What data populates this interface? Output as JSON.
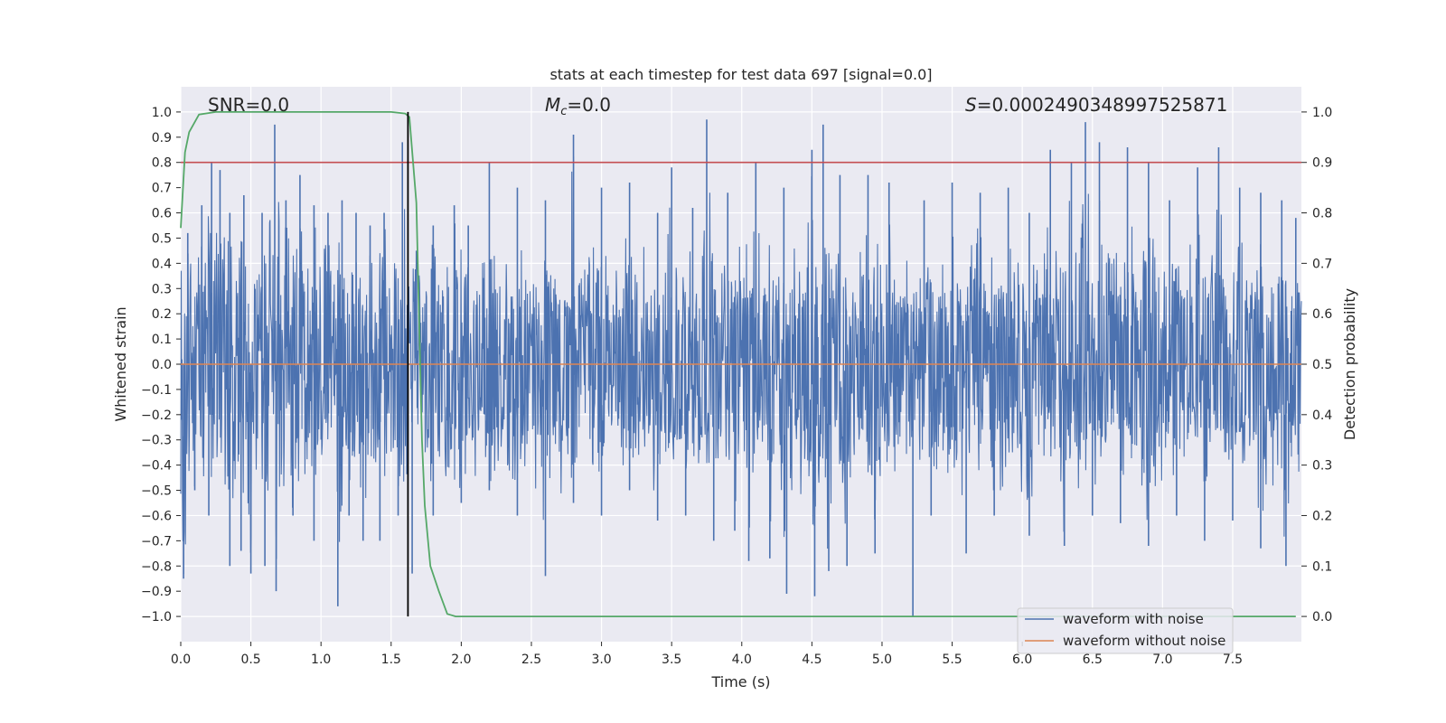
{
  "chart_data": {
    "type": "line",
    "title": "stats at each timestep for test data 697 [signal=0.0]",
    "xlabel": "Time (s)",
    "ylabel_left": "Whitened strain",
    "ylabel_right": "Detection probability",
    "xlim": [
      0.0,
      7.99
    ],
    "ylim_left": [
      -1.1,
      1.1
    ],
    "ylim_right": [
      -0.05,
      1.05
    ],
    "x_ticks": [
      "0.0",
      "0.5",
      "1.0",
      "1.5",
      "2.0",
      "2.5",
      "3.0",
      "3.5",
      "4.0",
      "4.5",
      "5.0",
      "5.5",
      "6.0",
      "6.5",
      "7.0",
      "7.5"
    ],
    "x_tick_values": [
      0.0,
      0.5,
      1.0,
      1.5,
      2.0,
      2.5,
      3.0,
      3.5,
      4.0,
      4.5,
      5.0,
      5.5,
      6.0,
      6.5,
      7.0,
      7.5
    ],
    "y_ticks_left": [
      "1.0",
      "0.9",
      "0.8",
      "0.7",
      "0.6",
      "0.5",
      "0.4",
      "0.3",
      "0.2",
      "0.1",
      "0.0",
      "−0.1",
      "−0.2",
      "−0.3",
      "−0.4",
      "−0.5",
      "−0.6",
      "−0.7",
      "−0.8",
      "−0.9",
      "−1.0"
    ],
    "y_tick_values_left": [
      1.0,
      0.9,
      0.8,
      0.7,
      0.6,
      0.5,
      0.4,
      0.3,
      0.2,
      0.1,
      0.0,
      -0.1,
      -0.2,
      -0.3,
      -0.4,
      -0.5,
      -0.6,
      -0.7,
      -0.8,
      -0.9,
      -1.0
    ],
    "y_ticks_right": [
      "1.0",
      "0.9",
      "0.8",
      "0.7",
      "0.6",
      "0.5",
      "0.4",
      "0.3",
      "0.2",
      "0.1",
      "0.0"
    ],
    "y_tick_values_right": [
      1.0,
      0.9,
      0.8,
      0.7,
      0.6,
      0.5,
      0.4,
      0.3,
      0.2,
      0.1,
      0.0
    ],
    "annotations": {
      "snr": "SNR=0.0",
      "mc_symbol": "M",
      "mc_sub": "c",
      "mc_value": "=0.0",
      "s_symbol": "S",
      "s_value": "=0.0002490348997525871"
    },
    "series": [
      {
        "name": "waveform with noise",
        "color": "#4c72b0",
        "note": "dense noise trace; envelope peaks (x, y) read from figure",
        "peaks_pos": [
          [
            0.05,
            0.52
          ],
          [
            0.15,
            0.63
          ],
          [
            0.22,
            0.8
          ],
          [
            0.28,
            0.77
          ],
          [
            0.35,
            0.6
          ],
          [
            0.45,
            0.67
          ],
          [
            0.58,
            0.6
          ],
          [
            0.67,
            0.95
          ],
          [
            0.75,
            0.65
          ],
          [
            0.85,
            0.75
          ],
          [
            0.95,
            0.63
          ],
          [
            1.05,
            0.6
          ],
          [
            1.15,
            0.65
          ],
          [
            1.25,
            0.6
          ],
          [
            1.35,
            0.55
          ],
          [
            1.45,
            0.6
          ],
          [
            1.58,
            0.88
          ],
          [
            1.68,
            0.45
          ],
          [
            1.8,
            0.55
          ],
          [
            1.95,
            0.63
          ],
          [
            2.05,
            0.55
          ],
          [
            2.2,
            0.8
          ],
          [
            2.4,
            0.7
          ],
          [
            2.6,
            0.65
          ],
          [
            2.8,
            0.91
          ],
          [
            3.0,
            0.7
          ],
          [
            3.2,
            0.72
          ],
          [
            3.4,
            0.6
          ],
          [
            3.5,
            0.78
          ],
          [
            3.65,
            0.62
          ],
          [
            3.75,
            0.97
          ],
          [
            3.9,
            0.68
          ],
          [
            4.1,
            0.8
          ],
          [
            4.3,
            0.7
          ],
          [
            4.5,
            0.85
          ],
          [
            4.58,
            0.95
          ],
          [
            4.7,
            0.75
          ],
          [
            4.9,
            0.75
          ],
          [
            5.05,
            0.72
          ],
          [
            5.3,
            0.65
          ],
          [
            5.5,
            0.72
          ],
          [
            5.7,
            0.68
          ],
          [
            5.9,
            0.7
          ],
          [
            6.05,
            0.6
          ],
          [
            6.2,
            0.85
          ],
          [
            6.35,
            0.8
          ],
          [
            6.45,
            0.96
          ],
          [
            6.55,
            0.88
          ],
          [
            6.75,
            0.86
          ],
          [
            6.9,
            0.8
          ],
          [
            7.05,
            0.65
          ],
          [
            7.25,
            0.78
          ],
          [
            7.4,
            0.86
          ],
          [
            7.55,
            0.7
          ],
          [
            7.7,
            0.68
          ],
          [
            7.85,
            0.65
          ],
          [
            7.95,
            0.58
          ]
        ],
        "peaks_neg": [
          [
            0.02,
            -0.85
          ],
          [
            0.1,
            -0.5
          ],
          [
            0.2,
            -0.6
          ],
          [
            0.35,
            -0.8
          ],
          [
            0.43,
            -0.74
          ],
          [
            0.5,
            -0.83
          ],
          [
            0.6,
            -0.8
          ],
          [
            0.68,
            -0.9
          ],
          [
            0.8,
            -0.6
          ],
          [
            0.95,
            -0.7
          ],
          [
            1.12,
            -0.96
          ],
          [
            1.2,
            -0.6
          ],
          [
            1.3,
            -0.7
          ],
          [
            1.42,
            -0.7
          ],
          [
            1.55,
            -0.6
          ],
          [
            1.65,
            -0.83
          ],
          [
            1.8,
            -0.6
          ],
          [
            2.0,
            -0.55
          ],
          [
            2.2,
            -0.5
          ],
          [
            2.4,
            -0.6
          ],
          [
            2.6,
            -0.84
          ],
          [
            2.8,
            -0.55
          ],
          [
            3.0,
            -0.6
          ],
          [
            3.2,
            -0.5
          ],
          [
            3.4,
            -0.62
          ],
          [
            3.6,
            -0.6
          ],
          [
            3.8,
            -0.7
          ],
          [
            3.95,
            -0.66
          ],
          [
            4.05,
            -0.78
          ],
          [
            4.2,
            -0.77
          ],
          [
            4.32,
            -0.91
          ],
          [
            4.52,
            -0.92
          ],
          [
            4.62,
            -0.82
          ],
          [
            4.75,
            -0.8
          ],
          [
            4.95,
            -0.75
          ],
          [
            5.22,
            -1.0
          ],
          [
            5.35,
            -0.6
          ],
          [
            5.6,
            -0.75
          ],
          [
            5.8,
            -0.6
          ],
          [
            6.05,
            -0.68
          ],
          [
            6.3,
            -0.72
          ],
          [
            6.5,
            -0.6
          ],
          [
            6.7,
            -0.63
          ],
          [
            6.9,
            -0.72
          ],
          [
            7.1,
            -0.6
          ],
          [
            7.3,
            -0.7
          ],
          [
            7.5,
            -0.62
          ],
          [
            7.7,
            -0.73
          ],
          [
            7.88,
            -0.8
          ]
        ]
      },
      {
        "name": "waveform without noise",
        "color": "#dd8452",
        "x": [
          0.0,
          7.99
        ],
        "y": [
          0.0,
          0.0
        ]
      },
      {
        "name": "detection probability",
        "color": "#55a868",
        "axis": "right",
        "x": [
          0.0,
          0.03,
          0.06,
          0.13,
          0.25,
          0.5,
          1.0,
          1.5,
          1.6,
          1.63,
          1.68,
          1.72,
          1.74,
          1.78,
          1.84,
          1.9,
          1.96,
          2.1,
          3.0,
          4.0,
          5.0,
          6.0,
          7.0,
          7.95
        ],
        "y": [
          0.77,
          0.92,
          0.96,
          0.995,
          1.0,
          1.0,
          1.0,
          1.0,
          0.997,
          0.99,
          0.82,
          0.35,
          0.22,
          0.1,
          0.05,
          0.005,
          0.0,
          0.0,
          0.0,
          0.0,
          0.0,
          0.0,
          0.0,
          0.0
        ]
      }
    ],
    "threshold": {
      "axis": "right",
      "value": 0.9,
      "color": "#c44e52"
    },
    "vline": {
      "x": 1.62,
      "color": "#000000"
    },
    "legend": {
      "position": "lower-right",
      "entries": [
        "waveform with noise",
        "waveform without noise"
      ]
    }
  }
}
